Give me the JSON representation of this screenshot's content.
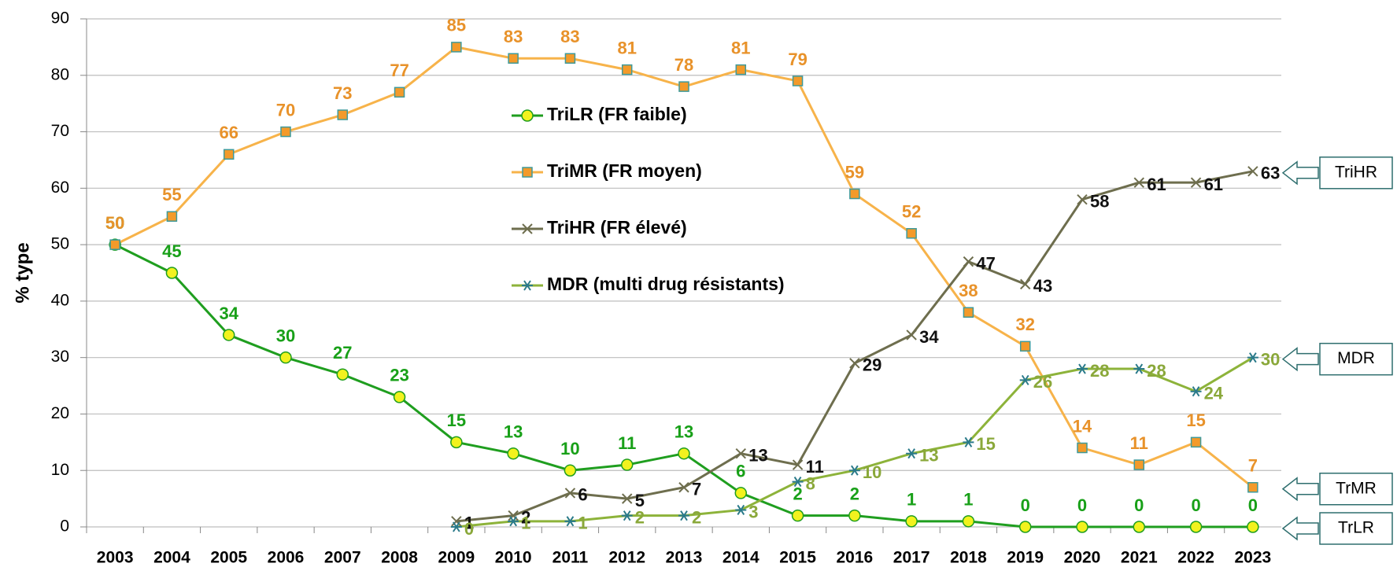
{
  "chart_data": {
    "type": "line",
    "y_label": "% type",
    "categories": [
      "2003",
      "2004",
      "2005",
      "2006",
      "2007",
      "2008",
      "2009",
      "2010",
      "2011",
      "2012",
      "2013",
      "2014",
      "2015",
      "2016",
      "2017",
      "2018",
      "2019",
      "2020",
      "2021",
      "2022",
      "2023"
    ],
    "series": [
      {
        "name": "TriLR (FR faible)",
        "color": "#1f9e1f",
        "label_color": "#18a018",
        "marker": "circle",
        "marker_color": "#f2f21e",
        "values": [
          50,
          45,
          34,
          30,
          27,
          23,
          15,
          13,
          10,
          11,
          13,
          6,
          2,
          2,
          1,
          1,
          0,
          0,
          0,
          0,
          0
        ]
      },
      {
        "name": "TriMR (FR moyen)",
        "color": "#f7b34a",
        "label_color": "#e8922a",
        "marker": "square",
        "marker_color": "#f39a2a",
        "values": [
          50,
          55,
          66,
          70,
          73,
          77,
          85,
          83,
          83,
          81,
          78,
          81,
          79,
          59,
          52,
          38,
          32,
          14,
          11,
          15,
          7
        ]
      },
      {
        "name": "TriHR (FR élevé)",
        "color": "#6e6e4e",
        "label_color": "#111111",
        "marker": "x",
        "marker_color": "#6e6e4e",
        "values": [
          null,
          null,
          null,
          null,
          null,
          null,
          1,
          2,
          6,
          5,
          7,
          13,
          11,
          29,
          34,
          47,
          43,
          58,
          61,
          61,
          63
        ]
      },
      {
        "name": "MDR (multi drug résistants)",
        "color": "#8db33a",
        "label_color": "#8aa83a",
        "marker": "star",
        "marker_color": "#2a7a8a",
        "values": [
          null,
          null,
          null,
          null,
          null,
          null,
          0,
          1,
          1,
          2,
          2,
          3,
          8,
          10,
          13,
          15,
          26,
          28,
          28,
          24,
          30
        ]
      }
    ],
    "annotations": [
      "TriHR",
      "MDR",
      "TrMR",
      "TrLR"
    ],
    "ylim": [
      0,
      90
    ],
    "yticks": [
      0,
      10,
      20,
      30,
      40,
      50,
      60,
      70,
      80,
      90
    ],
    "grid": true
  }
}
